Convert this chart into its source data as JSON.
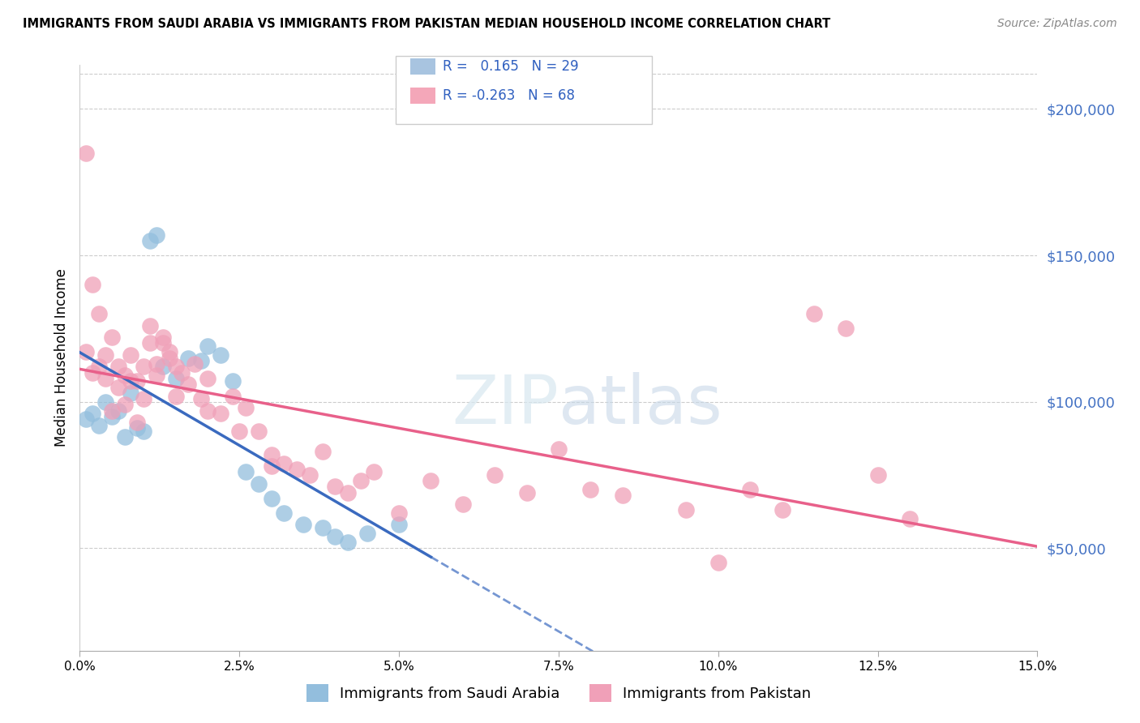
{
  "title": "IMMIGRANTS FROM SAUDI ARABIA VS IMMIGRANTS FROM PAKISTAN MEDIAN HOUSEHOLD INCOME CORRELATION CHART",
  "source": "Source: ZipAtlas.com",
  "ylabel": "Median Household Income",
  "y_ticks": [
    50000,
    100000,
    150000,
    200000
  ],
  "y_tick_labels": [
    "$50,000",
    "$100,000",
    "$150,000",
    "$200,000"
  ],
  "x_min": 0.0,
  "x_max": 0.15,
  "y_min": 15000,
  "y_max": 215000,
  "legend_color1": "#a8c4e0",
  "legend_color2": "#f4a7b9",
  "watermark": "ZIPatlas",
  "saudi_color": "#93bedd",
  "pakistan_color": "#f0a0b8",
  "saudi_line_color": "#3a6abf",
  "pakistan_line_color": "#e8608a",
  "saudi_x": [
    0.001,
    0.002,
    0.003,
    0.004,
    0.005,
    0.006,
    0.007,
    0.008,
    0.009,
    0.01,
    0.011,
    0.012,
    0.013,
    0.015,
    0.017,
    0.019,
    0.02,
    0.022,
    0.024,
    0.026,
    0.028,
    0.03,
    0.032,
    0.035,
    0.038,
    0.04,
    0.042,
    0.045,
    0.05
  ],
  "saudi_y": [
    94000,
    96000,
    92000,
    100000,
    95000,
    97000,
    88000,
    103000,
    91000,
    90000,
    155000,
    157000,
    112000,
    108000,
    115000,
    114000,
    119000,
    116000,
    107000,
    76000,
    72000,
    67000,
    62000,
    58000,
    57000,
    54000,
    52000,
    55000,
    58000
  ],
  "pakistan_x": [
    0.001,
    0.002,
    0.003,
    0.004,
    0.005,
    0.006,
    0.007,
    0.008,
    0.009,
    0.01,
    0.011,
    0.012,
    0.013,
    0.014,
    0.015,
    0.016,
    0.017,
    0.018,
    0.019,
    0.02,
    0.022,
    0.024,
    0.026,
    0.028,
    0.03,
    0.032,
    0.034,
    0.036,
    0.038,
    0.04,
    0.042,
    0.044,
    0.046,
    0.05,
    0.055,
    0.06,
    0.065,
    0.07,
    0.075,
    0.08,
    0.085,
    0.095,
    0.1,
    0.105,
    0.11,
    0.115,
    0.12,
    0.125,
    0.13,
    0.001,
    0.002,
    0.003,
    0.004,
    0.005,
    0.006,
    0.007,
    0.008,
    0.009,
    0.01,
    0.011,
    0.012,
    0.013,
    0.014,
    0.015,
    0.02,
    0.025,
    0.03
  ],
  "pakistan_y": [
    117000,
    110000,
    112000,
    108000,
    97000,
    105000,
    99000,
    107000,
    93000,
    112000,
    126000,
    109000,
    120000,
    115000,
    112000,
    110000,
    106000,
    113000,
    101000,
    108000,
    96000,
    102000,
    98000,
    90000,
    82000,
    79000,
    77000,
    75000,
    83000,
    71000,
    69000,
    73000,
    76000,
    62000,
    73000,
    65000,
    75000,
    69000,
    84000,
    70000,
    68000,
    63000,
    45000,
    70000,
    63000,
    130000,
    125000,
    75000,
    60000,
    185000,
    140000,
    130000,
    116000,
    122000,
    112000,
    109000,
    116000,
    107000,
    101000,
    120000,
    113000,
    122000,
    117000,
    102000,
    97000,
    90000,
    78000
  ]
}
